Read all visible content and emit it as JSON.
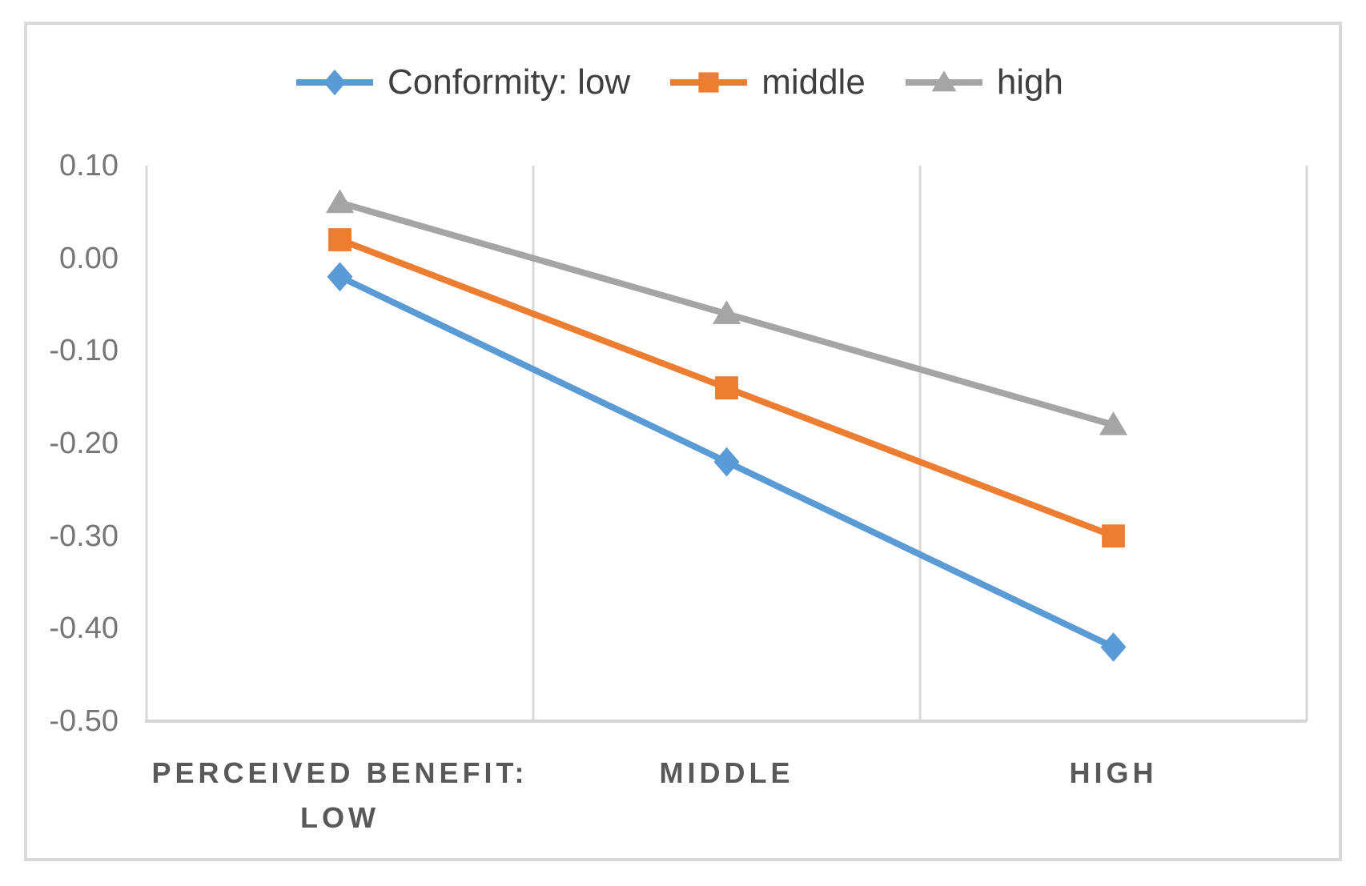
{
  "chart_data": {
    "type": "line",
    "title": "",
    "xlabel": "",
    "ylabel": "",
    "categories": [
      "PERCEIVED BENEFIT: LOW",
      "MIDDLE",
      "HIGH"
    ],
    "x_tick_lines": [
      [
        "PERCEIVED BENEFIT:",
        "LOW"
      ],
      [
        "MIDDLE"
      ],
      [
        "HIGH"
      ]
    ],
    "series": [
      {
        "name": "Conformity: low",
        "legend_label": "Conformity: low",
        "marker": "diamond",
        "color": "#5b9bd5",
        "values": [
          -0.02,
          -0.22,
          -0.42
        ]
      },
      {
        "name": "Conformity: middle",
        "legend_label": "middle",
        "marker": "square",
        "color": "#ed7d31",
        "values": [
          0.02,
          -0.14,
          -0.3
        ]
      },
      {
        "name": "Conformity: high",
        "legend_label": "high",
        "marker": "triangle",
        "color": "#a5a5a5",
        "values": [
          0.06,
          -0.06,
          -0.18
        ]
      }
    ],
    "ylim": [
      -0.5,
      0.1
    ],
    "y_ticks": [
      0.1,
      0.0,
      -0.1,
      -0.2,
      -0.3,
      -0.4,
      -0.5
    ],
    "y_tick_labels": [
      "0.10",
      "0.00",
      "-0.10",
      "-0.20",
      "-0.30",
      "-0.40",
      "-0.50"
    ],
    "grid": "vertical-only",
    "legend_position": "top-center"
  },
  "colors": {
    "background": "#ffffff",
    "chart_border": "#d9d9d9",
    "gridline": "#d9d9d9",
    "axis_line": "#d4d4d4",
    "y_tick_text": "#767676",
    "x_tick_text": "#595959",
    "legend_text": "#3f3f3f"
  }
}
